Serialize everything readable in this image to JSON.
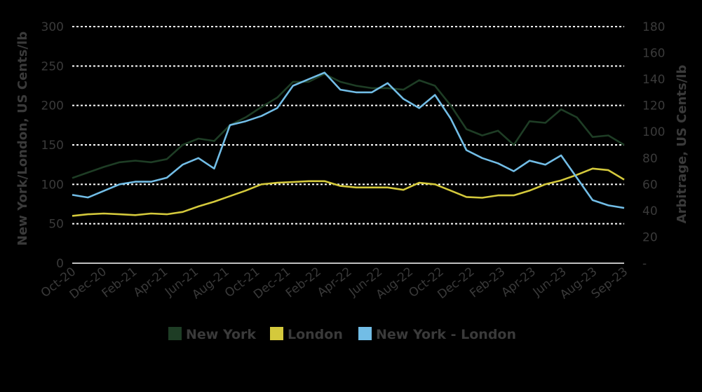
{
  "chart_data": {
    "type": "line",
    "title": "",
    "ylabel_left": "New York/London, US Cents/lb",
    "ylabel_right": "Arbitrage, US Cents/lb",
    "ylim_left": [
      0,
      300
    ],
    "ylim_right": [
      0,
      180
    ],
    "yticks_left": [
      "0",
      "50",
      "100",
      "150",
      "200",
      "250",
      "300"
    ],
    "yticks_right": [
      "-",
      "20",
      "40",
      "60",
      "80",
      "100",
      "120",
      "140",
      "160",
      "180"
    ],
    "x_tick_labels": [
      "Oct-20",
      "Dec-20",
      "Feb-21",
      "Apr-21",
      "Jun-21",
      "Aug-21",
      "Oct-21",
      "Dec-21",
      "Feb-22",
      "Apr-22",
      "Jun-22",
      "Aug-22",
      "Oct-22",
      "Dec-22",
      "Feb-23",
      "Apr-23",
      "Jun-23",
      "Aug-23",
      "Sep-23"
    ],
    "grid": true,
    "legend_position": "bottom",
    "colors": {
      "New York": "#1e3d25",
      "London": "#d4c93c",
      "New York - London": "#72bde6"
    },
    "x": [
      "Oct-20",
      "Nov-20",
      "Dec-20",
      "Jan-21",
      "Feb-21",
      "Mar-21",
      "Apr-21",
      "May-21",
      "Jun-21",
      "Jul-21",
      "Aug-21",
      "Sep-21",
      "Oct-21",
      "Nov-21",
      "Dec-21",
      "Jan-22",
      "Feb-22",
      "Mar-22",
      "Apr-22",
      "May-22",
      "Jun-22",
      "Jul-22",
      "Aug-22",
      "Sep-22",
      "Oct-22",
      "Nov-22",
      "Dec-22",
      "Jan-23",
      "Feb-23",
      "Mar-23",
      "Apr-23",
      "May-23",
      "Jun-23",
      "Jul-23",
      "Aug-23",
      "Sep-23"
    ],
    "series": [
      {
        "name": "New York",
        "axis": "left",
        "values": [
          108,
          115,
          122,
          128,
          130,
          128,
          132,
          150,
          158,
          155,
          175,
          185,
          198,
          210,
          230,
          230,
          240,
          230,
          225,
          222,
          222,
          220,
          232,
          225,
          200,
          170,
          162,
          168,
          150,
          180,
          178,
          195,
          185,
          160,
          162,
          150
        ]
      },
      {
        "name": "London",
        "axis": "left",
        "values": [
          60,
          62,
          63,
          62,
          61,
          63,
          62,
          65,
          72,
          78,
          85,
          92,
          100,
          102,
          103,
          104,
          104,
          98,
          96,
          96,
          96,
          93,
          102,
          100,
          92,
          84,
          83,
          86,
          86,
          92,
          100,
          105,
          112,
          120,
          118,
          106
        ]
      },
      {
        "name": "New York - London",
        "axis": "right",
        "values": [
          52,
          50,
          55,
          60,
          62,
          62,
          65,
          75,
          80,
          72,
          105,
          108,
          112,
          118,
          135,
          140,
          145,
          132,
          130,
          130,
          137,
          125,
          118,
          128,
          110,
          86,
          80,
          76,
          70,
          78,
          75,
          82,
          65,
          48,
          44,
          42
        ]
      }
    ]
  }
}
